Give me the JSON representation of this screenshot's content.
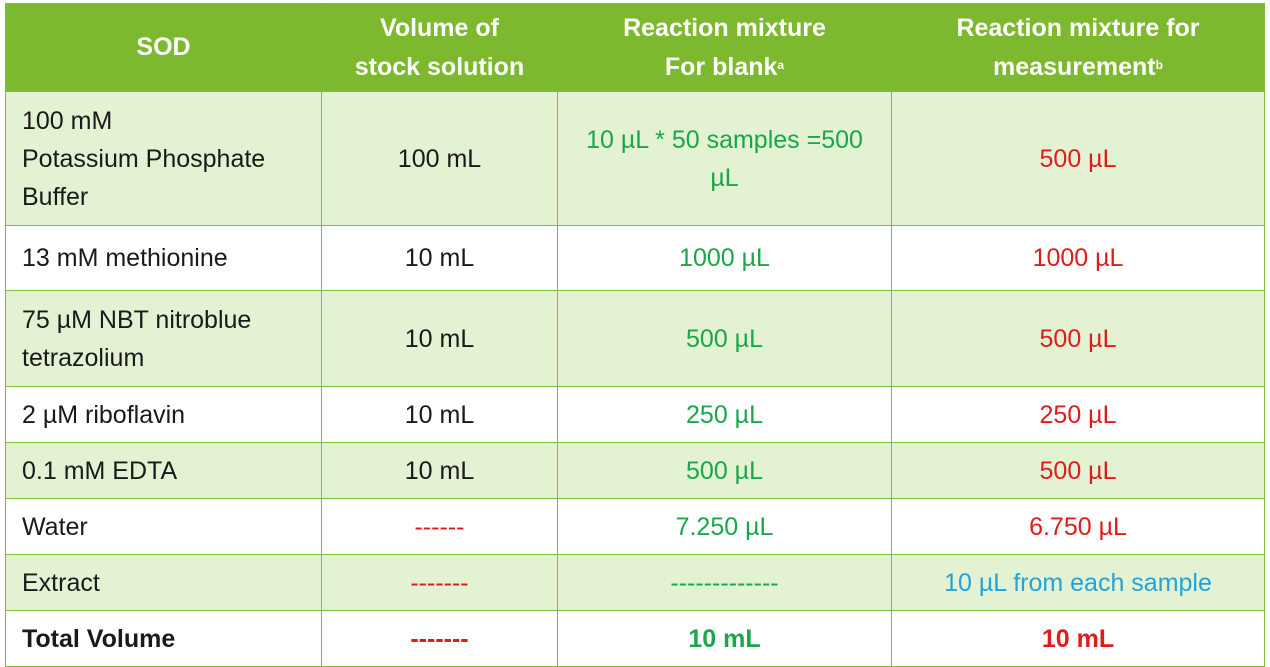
{
  "table": {
    "headers": [
      {
        "line1": "SOD",
        "line2": "",
        "sup": ""
      },
      {
        "line1": "Volume of",
        "line2": "stock solution",
        "sup": ""
      },
      {
        "line1": "Reaction mixture",
        "line2": "For blank",
        "sup": "a"
      },
      {
        "line1": "Reaction mixture for",
        "line2": "measurement",
        "sup": "b"
      }
    ],
    "rows": [
      {
        "name_lines": [
          "100 mM",
          "Potassium Phosphate",
          "Buffer"
        ],
        "stock": "100 mL",
        "blank_lines": [
          "10 µL * 50 samples =500",
          "µL"
        ],
        "measurement": "500 µL"
      },
      {
        "name_lines": [
          "13 mM methionine"
        ],
        "stock": "10 mL",
        "blank_lines": [
          "1000 µL"
        ],
        "measurement": "1000 µL"
      },
      {
        "name_lines": [
          "75 µM NBT nitroblue",
          "tetrazolium"
        ],
        "stock": "10 mL",
        "blank_lines": [
          "500 µL"
        ],
        "measurement": "500 µL"
      },
      {
        "name_lines": [
          "2 µM riboflavin"
        ],
        "stock": "10 mL",
        "blank_lines": [
          "250 µL"
        ],
        "measurement": "250 µL"
      },
      {
        "name_lines": [
          "0.1 mM EDTA"
        ],
        "stock": "10 mL",
        "blank_lines": [
          "500 µL"
        ],
        "measurement": "500 µL"
      },
      {
        "name_lines": [
          "Water"
        ],
        "stock": "------",
        "blank_lines": [
          "7.250 µL"
        ],
        "measurement": "6.750 µL"
      },
      {
        "name_lines": [
          "Extract"
        ],
        "stock": "-------",
        "blank_lines": [
          "-------------"
        ],
        "measurement": "10 µL from each sample"
      },
      {
        "name_lines": [
          "Total Volume"
        ],
        "stock": "-------",
        "blank_lines": [
          "10 mL"
        ],
        "measurement": "10 mL"
      }
    ]
  },
  "colors": {
    "header_bg": "#7cb92f",
    "row_alt_bg": "#e2f2d2",
    "blank_text": "#1aa64b",
    "measurement_text": "#e01b1b",
    "extract_text": "#23a4d8"
  }
}
